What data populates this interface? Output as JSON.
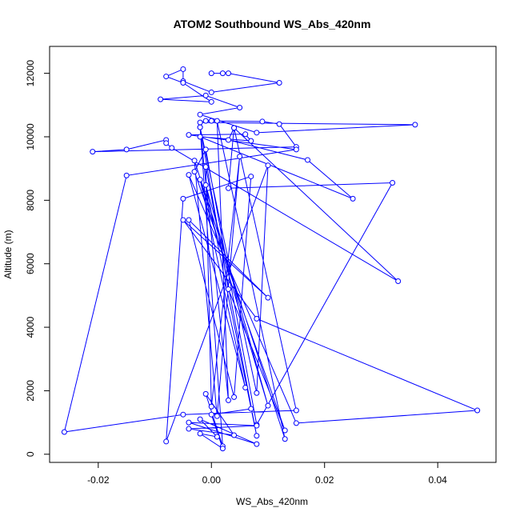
{
  "chart_data": {
    "type": "line",
    "title": "ATOM2 Southbound WS_Abs_420nm",
    "x_label": "WS_Abs_420nm",
    "y_label": "Altitude (m)",
    "color": "#0000ff",
    "markers": true,
    "xlim": [
      -0.0286,
      0.0503
    ],
    "ylim": [
      -257,
      12847
    ],
    "xticks": [
      -0.02,
      {
        "value": 0,
        "label": "0.00"
      },
      0.02,
      0.04
    ],
    "yticks": [
      0,
      2000,
      4000,
      6000,
      8000,
      10000,
      12000
    ],
    "x": [
      0.0,
      0.002,
      0.003,
      0.012,
      0.0,
      -0.005,
      -0.005,
      -0.008,
      -0.005,
      0.0,
      -0.009,
      -0.001,
      0.005,
      -0.002,
      0.008,
      0.036,
      -0.002,
      0.0,
      -0.001,
      0.009,
      0.012,
      0.015,
      -0.021,
      -0.015,
      -0.008,
      -0.008,
      -0.007,
      0.033,
      0.004,
      0.003,
      0.017,
      0.025,
      -0.002,
      0.007,
      0.006,
      -0.004,
      0.015,
      -0.015,
      -0.026,
      -0.005,
      0.015,
      0.004,
      0.003,
      0.032,
      0.008,
      -0.001,
      -0.003,
      0.013,
      0.003,
      -0.002,
      0.008,
      0.01,
      -0.008,
      -0.005,
      0.007,
      0.004,
      -0.004,
      0.01,
      -0.005,
      0.008,
      0.047,
      0.015,
      -0.004,
      0.006,
      -0.002,
      0.01,
      -0.001,
      0.008,
      -0.001,
      0.0,
      0.005,
      0.001,
      -0.003,
      0.013,
      0.001,
      0.003,
      -0.002,
      0.002,
      -0.001,
      0.004,
      -0.004,
      0.008,
      -0.004,
      0.008,
      -0.002,
      0.001,
      -0.002,
      0.002,
      0.0,
      0.007
    ],
    "values": [
      12000,
      12000,
      12000,
      11700,
      11400,
      11750,
      12130,
      11900,
      11700,
      11100,
      11180,
      11300,
      10920,
      10700,
      10130,
      10380,
      10450,
      10500,
      10500,
      10480,
      10400,
      9680,
      9530,
      9600,
      9900,
      9800,
      9650,
      5450,
      10280,
      9900,
      9270,
      8050,
      10000,
      9870,
      10080,
      10060,
      9600,
      8780,
      700,
      1250,
      1380,
      10280,
      8380,
      8550,
      930,
      9600,
      8900,
      750,
      5200,
      10300,
      1930,
      9100,
      400,
      8050,
      8750,
      1800,
      7380,
      4930,
      7380,
      4270,
      1380,
      980,
      8800,
      2100,
      8650,
      1530,
      8480,
      580,
      9050,
      1500,
      9380,
      1200,
      9250,
      480,
      10500,
      1700,
      10300,
      250,
      1900,
      600,
      800,
      900,
      1000,
      320,
      1100,
      550,
      650,
      180,
      1250,
      1430
    ]
  }
}
